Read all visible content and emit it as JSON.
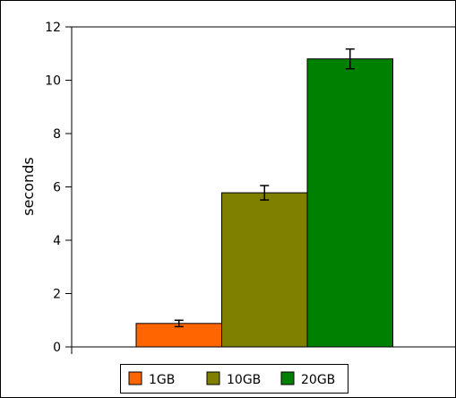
{
  "chart_data": {
    "type": "bar",
    "title": "",
    "xlabel": "",
    "ylabel": "seconds",
    "ylim": [
      0,
      12
    ],
    "yticks": [
      0,
      2,
      4,
      6,
      8,
      10,
      12
    ],
    "grid": false,
    "legend": "bottom",
    "series": [
      {
        "name": "1GB",
        "value": 0.88,
        "error": 0.12,
        "color": "#ff6600"
      },
      {
        "name": "10GB",
        "value": 5.78,
        "error": 0.27,
        "color": "#808000"
      },
      {
        "name": "20GB",
        "value": 10.8,
        "error": 0.37,
        "color": "#008000"
      }
    ]
  }
}
